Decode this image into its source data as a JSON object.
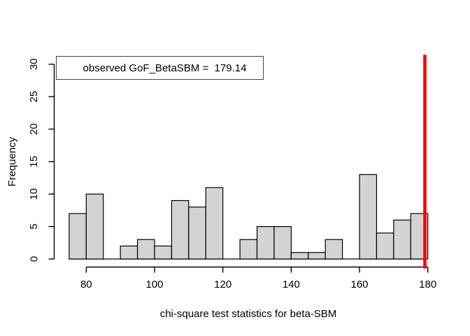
{
  "figure": {
    "background": "#ffffff"
  },
  "legend": {
    "text": "observed GoF_BetaSBM =  179.14"
  },
  "chart_data": {
    "type": "bar",
    "subtype": "histogram",
    "title": "",
    "xlabel": "chi-square test statistics for beta-SBM",
    "ylabel": "Frequency",
    "bin_edges": [
      75,
      80,
      85,
      90,
      95,
      100,
      105,
      110,
      115,
      120,
      125,
      130,
      135,
      140,
      145,
      150,
      155,
      160,
      165,
      170,
      175,
      180
    ],
    "counts": [
      7,
      10,
      0,
      2,
      3,
      2,
      9,
      8,
      11,
      0,
      3,
      5,
      5,
      1,
      1,
      3,
      0,
      13,
      4,
      6,
      7
    ],
    "x_ticks": [
      "80",
      "100",
      "120",
      "140",
      "160",
      "180"
    ],
    "x_tick_values": [
      80,
      100,
      120,
      140,
      160,
      180
    ],
    "y_ticks": [
      "0",
      "5",
      "10",
      "15",
      "20",
      "25",
      "30"
    ],
    "y_tick_values": [
      0,
      5,
      10,
      15,
      20,
      25,
      30
    ],
    "xlim": [
      75,
      180
    ],
    "ylim": [
      0,
      30
    ],
    "grid": false,
    "legend_position": "top-left",
    "observed_value": 179.14,
    "colors": {
      "bar_fill": "#d3d3d3",
      "bar_border": "#000000",
      "axis": "#000000",
      "observed_line": "#ff0000",
      "text": "#000000"
    }
  }
}
